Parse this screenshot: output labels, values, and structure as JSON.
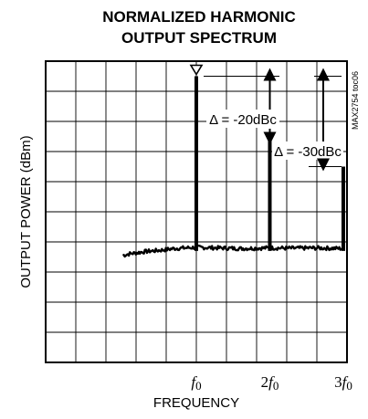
{
  "chart_data": {
    "type": "line",
    "title_lines": [
      "NORMALIZED HARMONIC",
      "OUTPUT SPECTRUM"
    ],
    "xlabel": "FREQUENCY",
    "ylabel": "OUTPUT POWER (dBm)",
    "side_label": "MAX2754 toc06",
    "x_ticks": [
      {
        "base": "f",
        "sub": "0",
        "pre": ""
      },
      {
        "base": "f",
        "sub": "0",
        "pre": "2"
      },
      {
        "base": "f",
        "sub": "0",
        "pre": "3"
      }
    ],
    "grid": true,
    "series": [
      {
        "kind": "spectrum",
        "noise_floor": [
          [
            0.0,
            -64.5
          ],
          [
            0.1,
            -63.9
          ],
          [
            0.2,
            -63.6
          ],
          [
            0.3,
            -63.2
          ],
          [
            0.5,
            -62.8
          ],
          [
            0.7,
            -62.2
          ],
          [
            1.0,
            -61.8
          ],
          [
            1.3,
            -62.0
          ],
          [
            1.6,
            -62.2
          ],
          [
            2.0,
            -62.0
          ],
          [
            2.3,
            -62.1
          ],
          [
            2.6,
            -62.0
          ],
          [
            3.0,
            -62.2
          ]
        ],
        "peaks": [
          {
            "x": 1.0,
            "y": -5
          },
          {
            "x": 2.0,
            "y": -25
          },
          {
            "x": 3.0,
            "y": -35
          }
        ]
      }
    ],
    "marker": {
      "x": 1.0,
      "y": -5,
      "symbol": "triangle-down"
    },
    "annotations": [
      {
        "text": "Δ = -20dBc",
        "from_y": -5,
        "to_y": -25,
        "x": 2.0
      },
      {
        "text": "Δ = -30dBc",
        "from_y": -5,
        "to_y": -35,
        "x": 3.0
      }
    ]
  }
}
